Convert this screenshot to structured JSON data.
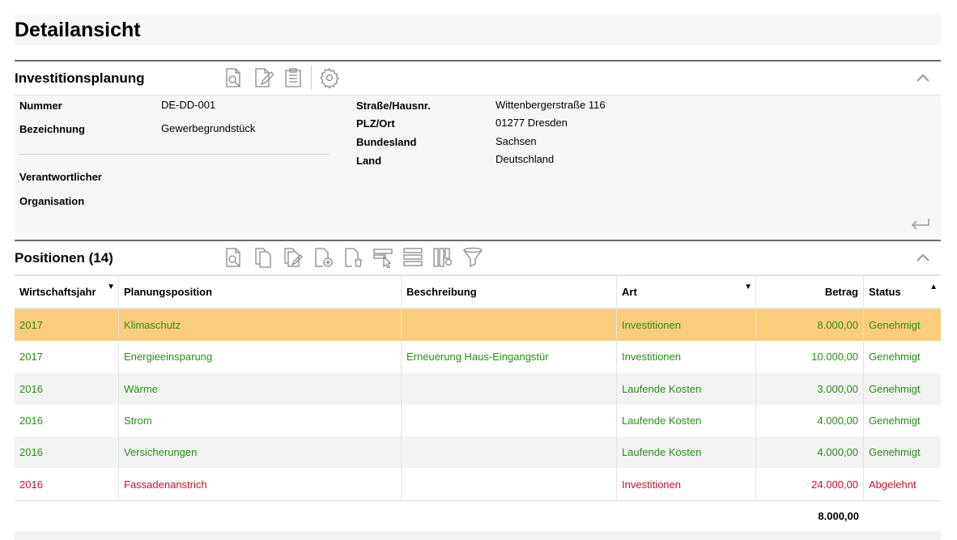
{
  "page": {
    "title": "Detailansicht"
  },
  "investment": {
    "title": "Investitionsplanung",
    "toolbar_icons": [
      "view-details-icon",
      "edit-icon",
      "clipboard-icon",
      "settings-icon"
    ],
    "fields_left": [
      {
        "label": "Nummer",
        "value": "DE-DD-001"
      },
      {
        "label": "Bezeichnung",
        "value": "Gewerbegrundstück"
      },
      {
        "label": "Verantwortlicher",
        "value": ""
      },
      {
        "label": "Organisation",
        "value": ""
      }
    ],
    "fields_right": [
      {
        "label": "Straße/Hausnr.",
        "value": "Wittenbergerstraße 116"
      },
      {
        "label": "PLZ/Ort",
        "value": "01277 Dresden"
      },
      {
        "label": "Bundesland",
        "value": "Sachsen"
      },
      {
        "label": "Land",
        "value": "Deutschland"
      }
    ]
  },
  "positions": {
    "title": "Positionen (14)",
    "toolbar_icons": [
      "view-details-icon",
      "copy-icon",
      "edit-document-icon",
      "add-document-icon",
      "delete-document-icon",
      "select-rows-icon",
      "row-layout-icon",
      "column-settings-icon",
      "filter-icon"
    ],
    "columns": [
      "Wirtschaftsjahr",
      "Planungsposition",
      "Beschreibung",
      "Art",
      "Betrag",
      "Status"
    ],
    "rows": [
      {
        "year": "2017",
        "position": "Klimaschutz",
        "description": "",
        "type": "Investitionen",
        "amount": "8.000,00",
        "status": "Genehmigt"
      },
      {
        "year": "2017",
        "position": "Energieeinsparung",
        "description": "Erneuerung Haus-Eingangstür",
        "type": "Investitionen",
        "amount": "10.000,00",
        "status": "Genehmigt"
      },
      {
        "year": "2016",
        "position": "Wärme",
        "description": "",
        "type": "Laufende Kosten",
        "amount": "3.000,00",
        "status": "Genehmigt"
      },
      {
        "year": "2016",
        "position": "Strom",
        "description": "",
        "type": "Laufende Kosten",
        "amount": "4.000,00",
        "status": "Genehmigt"
      },
      {
        "year": "2016",
        "position": "Versicherungen",
        "description": "",
        "type": "Laufende Kosten",
        "amount": "4.000,00",
        "status": "Genehmigt"
      },
      {
        "year": "2016",
        "position": "Fassadenanstrich",
        "description": "",
        "type": "Investitionen",
        "amount": "24.000,00",
        "status": "Abgelehnt"
      }
    ],
    "total": "8.000,00"
  },
  "colors": {
    "selected_row": "#fbcd7c",
    "approved": "#2c8a1c",
    "rejected": "#c4122f",
    "icon": "#8a8a8a"
  }
}
